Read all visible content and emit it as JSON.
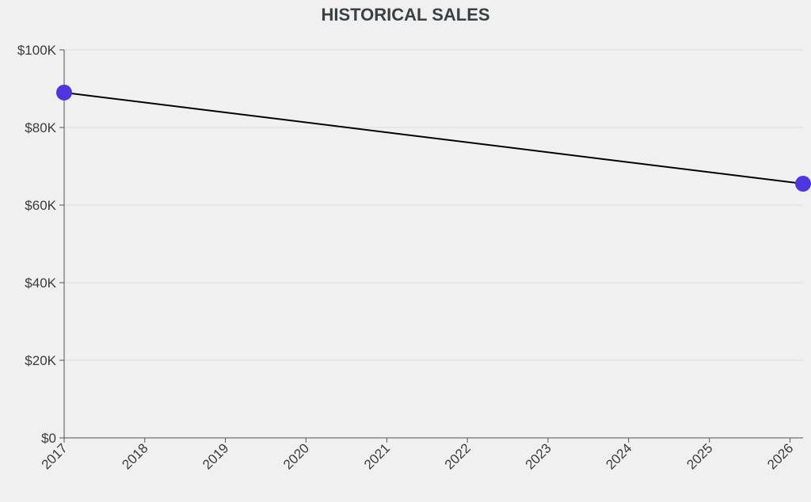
{
  "chart_data": {
    "type": "line",
    "title": "HISTORICAL SALES",
    "xlabel": "",
    "ylabel": "",
    "x_ticks": [
      "2017",
      "2018",
      "2019",
      "2020",
      "2021",
      "2022",
      "2023",
      "2024",
      "2025",
      "2026"
    ],
    "y_ticks": [
      "$0",
      "$20K",
      "$40K",
      "$60K",
      "$80K",
      "$100K"
    ],
    "ylim": [
      0,
      100000
    ],
    "xlim": [
      "2017-01-01",
      "2026-03-01"
    ],
    "grid": true,
    "legend": "none",
    "series": [
      {
        "color": "#4f35e0",
        "points": [
          {
            "x": "2017-01-01",
            "y": 89000
          },
          {
            "x": "2026-03-01",
            "y": 65500
          }
        ]
      }
    ]
  }
}
